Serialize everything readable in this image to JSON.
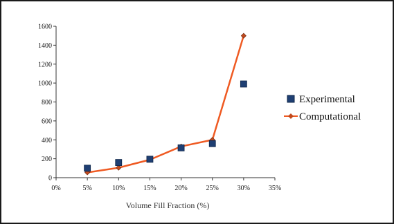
{
  "chart_data": {
    "type": "line",
    "title": "",
    "xlabel": "Volume Fill Fraction (%)",
    "ylabel": "",
    "x_ticks": [
      "0%",
      "5%",
      "10%",
      "15%",
      "20%",
      "25%",
      "30%",
      "35%"
    ],
    "y_ticks": [
      "0",
      "200",
      "400",
      "600",
      "800",
      "1000",
      "1200",
      "1400",
      "1600"
    ],
    "xlim": [
      0,
      35
    ],
    "ylim": [
      0,
      1600
    ],
    "grid": false,
    "legend_position": "right",
    "series": [
      {
        "name": "Experimental",
        "style": "markers",
        "marker": "square",
        "color": "#1f3f73",
        "x": [
          5,
          10,
          15,
          20,
          25,
          30
        ],
        "y": [
          100,
          160,
          195,
          315,
          360,
          990
        ]
      },
      {
        "name": "Computational",
        "style": "line",
        "marker": "diamond",
        "color": "#ef5a22",
        "x": [
          5,
          10,
          15,
          20,
          25,
          30
        ],
        "y": [
          55,
          105,
          190,
          330,
          400,
          1500
        ]
      }
    ]
  }
}
